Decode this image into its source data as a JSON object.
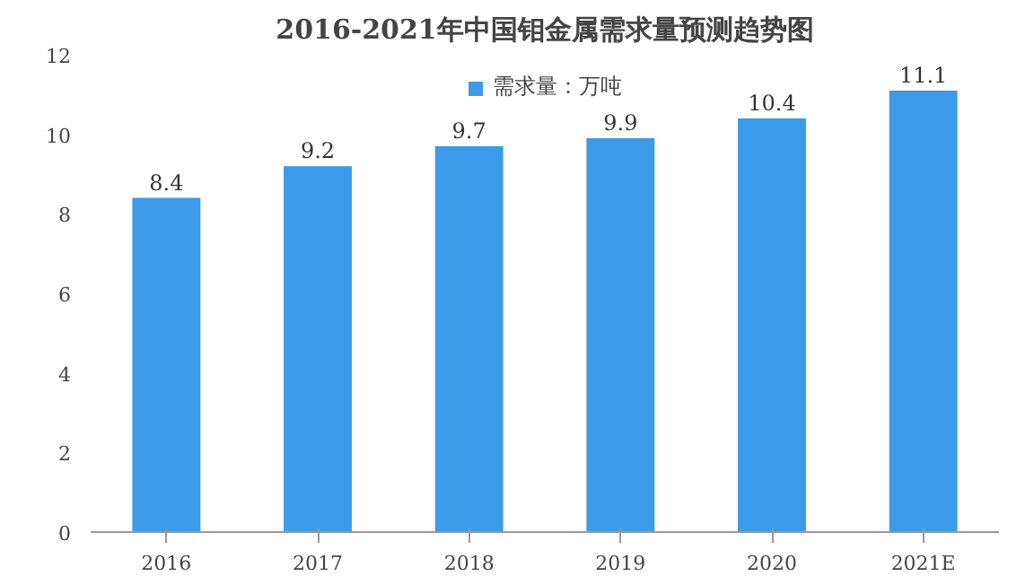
{
  "chart_data": {
    "type": "bar",
    "title": "2016-2021年中国钼金属需求量预测趋势图",
    "categories": [
      "2016",
      "2017",
      "2018",
      "2019",
      "2020",
      "2021E"
    ],
    "series": [
      {
        "name": "需求量：万吨",
        "color": "#3c9be9",
        "values": [
          8.4,
          9.2,
          9.7,
          9.9,
          10.4,
          11.1
        ]
      }
    ],
    "ylim": [
      0,
      12
    ],
    "yticks": [
      0,
      2,
      4,
      6,
      8,
      10,
      12
    ],
    "grid": false,
    "legend": "top",
    "data_labels": true
  }
}
